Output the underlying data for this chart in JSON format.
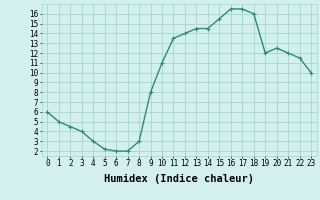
{
  "x": [
    0,
    1,
    2,
    3,
    4,
    5,
    6,
    7,
    8,
    9,
    10,
    11,
    12,
    13,
    14,
    15,
    16,
    17,
    18,
    19,
    20,
    21,
    22,
    23
  ],
  "y": [
    6,
    5,
    4.5,
    4,
    3,
    2.2,
    2,
    2,
    3,
    8,
    11,
    13.5,
    14,
    14.5,
    14.5,
    15.5,
    16.5,
    16.5,
    16,
    12,
    12.5,
    12,
    11.5,
    10
  ],
  "line_color": "#2e8b74",
  "marker": "+",
  "bg_color": "#d4f0ee",
  "grid_color": "#a0d8d0",
  "xlabel": "Humidex (Indice chaleur)",
  "xlim": [
    -0.5,
    23.5
  ],
  "ylim": [
    1.5,
    17.0
  ],
  "yticks": [
    2,
    3,
    4,
    5,
    6,
    7,
    8,
    9,
    10,
    11,
    12,
    13,
    14,
    15,
    16
  ],
  "xticks": [
    0,
    1,
    2,
    3,
    4,
    5,
    6,
    7,
    8,
    9,
    10,
    11,
    12,
    13,
    14,
    15,
    16,
    17,
    18,
    19,
    20,
    21,
    22,
    23
  ],
  "tick_label_fontsize": 5.5,
  "xlabel_fontsize": 7.5,
  "line_width": 1.0,
  "marker_size": 3,
  "marker_edge_width": 0.8
}
